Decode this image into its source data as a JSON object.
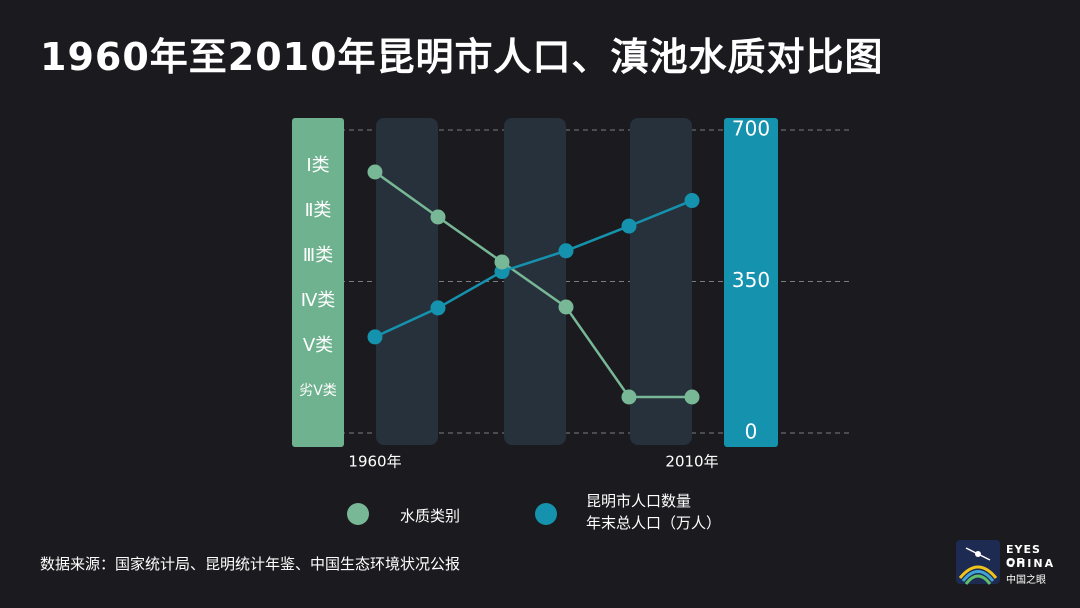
{
  "title": "1960年至2010年昆明市人口、滇池水质对比图",
  "source": "数据来源：国家统计局、昆明统计年鉴、中国生态环境状况公报",
  "logo": {
    "line1": "EYES OF",
    "line2": "CHINA",
    "line3": "中国之眼"
  },
  "colors": {
    "background": "#1b1b1f",
    "water_quality": "#78b896",
    "population": "#1592ad",
    "left_axis_bar": "#6fb28f",
    "right_axis_bar": "#1592ad",
    "column_band": "#27313c",
    "grid": "#7a7d82"
  },
  "chart_data": {
    "type": "line",
    "x": [
      "1960年",
      "",
      "",
      "",
      "",
      "2010年"
    ],
    "x_tick_labels": [
      "1960年",
      "2010年"
    ],
    "left_axis": {
      "categories": [
        "Ⅰ类",
        "Ⅱ类",
        "Ⅲ类",
        "Ⅳ类",
        "Ⅴ类",
        "劣Ⅴ类"
      ]
    },
    "right_axis": {
      "ticks": [
        700,
        350,
        0
      ],
      "ylim": [
        0,
        700
      ]
    },
    "grid": true,
    "series": [
      {
        "name": "水质类别",
        "axis": "left",
        "values": [
          "Ⅰ类",
          "Ⅱ类",
          "Ⅲ类",
          "Ⅳ类",
          "劣Ⅴ类",
          "劣Ⅴ类"
        ]
      },
      {
        "name": "昆明市人口数量\n年末总人口（万人）",
        "axis": "right",
        "values": [
          222,
          289,
          373,
          421,
          478,
          537
        ]
      }
    ],
    "legend": {
      "placement": "bottom",
      "items": [
        "水质类别",
        "昆明市人口数量\n年末总人口（万人）"
      ]
    }
  }
}
